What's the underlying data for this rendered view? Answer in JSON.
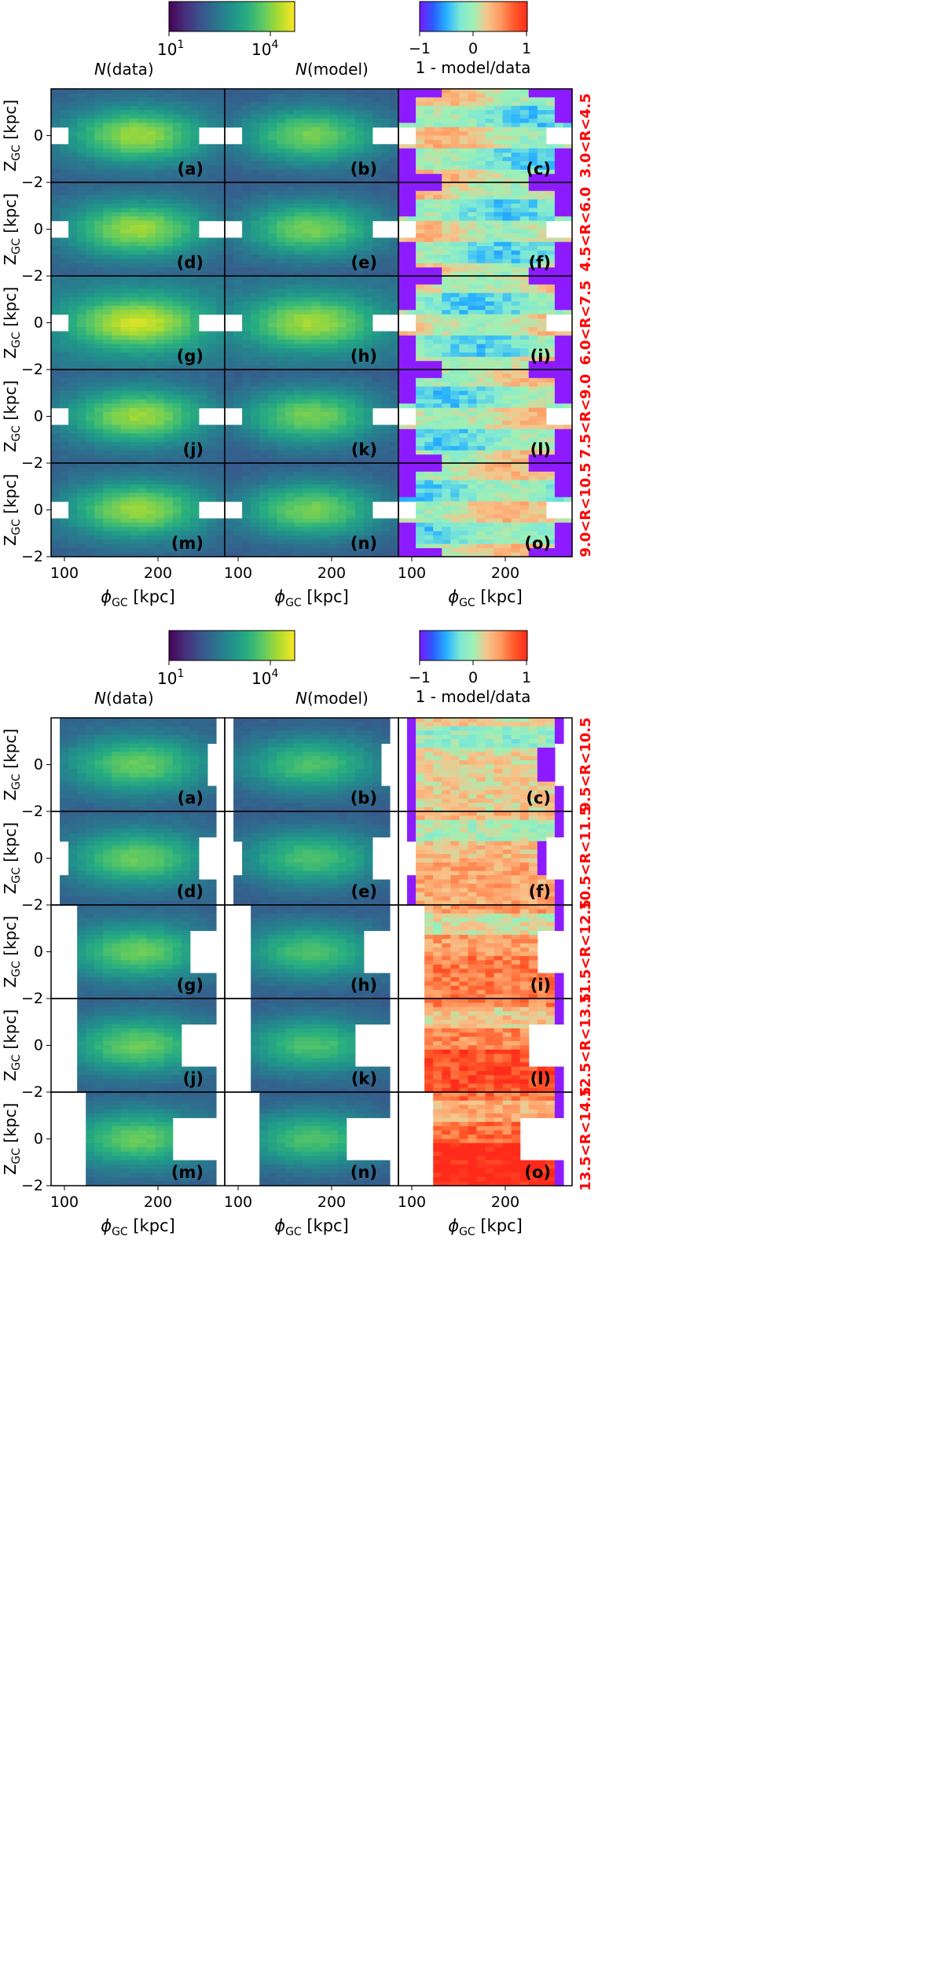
{
  "chart_data": [
    {
      "type": "heatmap",
      "panels": [
        {
          "label": "(a)",
          "kind": "data",
          "row": 0,
          "col": 0
        },
        {
          "label": "(b)",
          "kind": "model",
          "row": 0,
          "col": 1
        },
        {
          "label": "(c)",
          "kind": "residual",
          "row": 0,
          "col": 2
        },
        {
          "label": "(d)",
          "kind": "data",
          "row": 1,
          "col": 0
        },
        {
          "label": "(e)",
          "kind": "model",
          "row": 1,
          "col": 1
        },
        {
          "label": "(f)",
          "kind": "residual",
          "row": 1,
          "col": 2
        },
        {
          "label": "(g)",
          "kind": "data",
          "row": 2,
          "col": 0
        },
        {
          "label": "(h)",
          "kind": "model",
          "row": 2,
          "col": 1
        },
        {
          "label": "(i)",
          "kind": "residual",
          "row": 2,
          "col": 2
        },
        {
          "label": "(j)",
          "kind": "data",
          "row": 3,
          "col": 0
        },
        {
          "label": "(k)",
          "kind": "model",
          "row": 3,
          "col": 1
        },
        {
          "label": "(l)",
          "kind": "residual",
          "row": 3,
          "col": 2
        },
        {
          "label": "(m)",
          "kind": "data",
          "row": 4,
          "col": 0
        },
        {
          "label": "(n)",
          "kind": "model",
          "row": 4,
          "col": 1
        },
        {
          "label": "(o)",
          "kind": "residual",
          "row": 4,
          "col": 2
        }
      ],
      "row_labels": [
        "3.0<R<4.5",
        "4.5<R<6.0",
        "6.0<R<7.5",
        "7.5<R<9.0",
        "9.0<R<10.5"
      ],
      "xlabel": "ϕGC [kpc]",
      "ylabel": "ZGC [kpc]",
      "xticks": [
        "100",
        "200"
      ],
      "yticks": [
        "0",
        "−2"
      ],
      "xlim": [
        90,
        280
      ],
      "ylim": [
        -2,
        2
      ],
      "colorbar_counts": {
        "label_n": "N",
        "label_rest": "(data)",
        "ticks": [
          "10",
          "1",
          "10",
          "4"
        ]
      },
      "colorbar_counts_model_label": {
        "label_n": "N",
        "label_rest": "(model)"
      },
      "colorbar_residual": {
        "label": "1 - model/data",
        "ticks": [
          "−1",
          "0",
          "1"
        ],
        "range": [
          -1,
          1
        ]
      }
    },
    {
      "type": "heatmap",
      "panels": [
        {
          "label": "(a)",
          "kind": "data",
          "row": 0,
          "col": 0
        },
        {
          "label": "(b)",
          "kind": "model",
          "row": 0,
          "col": 1
        },
        {
          "label": "(c)",
          "kind": "residual",
          "row": 0,
          "col": 2
        },
        {
          "label": "(d)",
          "kind": "data",
          "row": 1,
          "col": 0
        },
        {
          "label": "(e)",
          "kind": "model",
          "row": 1,
          "col": 1
        },
        {
          "label": "(f)",
          "kind": "residual",
          "row": 1,
          "col": 2
        },
        {
          "label": "(g)",
          "kind": "data",
          "row": 2,
          "col": 0
        },
        {
          "label": "(h)",
          "kind": "model",
          "row": 2,
          "col": 1
        },
        {
          "label": "(i)",
          "kind": "residual",
          "row": 2,
          "col": 2
        },
        {
          "label": "(j)",
          "kind": "data",
          "row": 3,
          "col": 0
        },
        {
          "label": "(k)",
          "kind": "model",
          "row": 3,
          "col": 1
        },
        {
          "label": "(l)",
          "kind": "residual",
          "row": 3,
          "col": 2
        },
        {
          "label": "(m)",
          "kind": "data",
          "row": 4,
          "col": 0
        },
        {
          "label": "(n)",
          "kind": "model",
          "row": 4,
          "col": 1
        },
        {
          "label": "(o)",
          "kind": "residual",
          "row": 4,
          "col": 2
        }
      ],
      "row_labels": [
        "9.5<R<10.5",
        "10.5<R<11.5",
        "11.5<R<12.5",
        "12.5<R<13.5",
        "13.5<R<14.5"
      ],
      "xlabel": "ϕGC [kpc]",
      "ylabel": "ZGC [kpc]",
      "xticks": [
        "100",
        "200"
      ],
      "yticks": [
        "0",
        "−2"
      ],
      "xlim": [
        90,
        280
      ],
      "ylim": [
        -2,
        2
      ],
      "colorbar_counts": {
        "label_n": "N",
        "label_rest": "(data)",
        "ticks": [
          "10",
          "1",
          "10",
          "4"
        ]
      },
      "colorbar_counts_model_label": {
        "label_n": "N",
        "label_rest": "(model)"
      },
      "colorbar_residual": {
        "label": "1 - model/data",
        "ticks": [
          "−1",
          "0",
          "1"
        ],
        "range": [
          -1,
          1
        ]
      }
    }
  ],
  "colors": {
    "viridis": [
      "#440154",
      "#472d7b",
      "#3b528b",
      "#2c728e",
      "#21918c",
      "#28ae80",
      "#5ec962",
      "#addc30",
      "#fde725"
    ],
    "jet": [
      "#7a18ff",
      "#2a5cff",
      "#27b2ff",
      "#7de8d6",
      "#9ff0b4",
      "#f6c58c",
      "#ff9a62",
      "#ff5a2a",
      "#ff2a1a"
    ],
    "row_label": "#ff0000",
    "gap_purple": "#8c1cff"
  }
}
